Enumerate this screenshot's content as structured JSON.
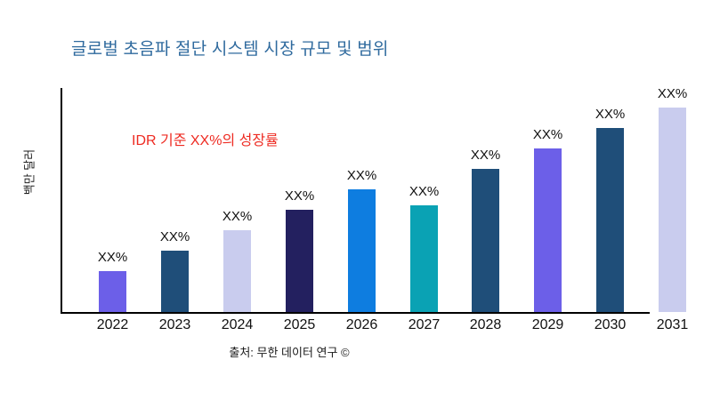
{
  "title": "글로벌 초음파 절단 시스템 시장 규모 및 범위",
  "annotation": "IDR 기준 XX%의 성장률",
  "source": "출처: 무한 데이터 연구 ©",
  "colors": {
    "title_text": "#2F6A9E",
    "annotation_text": "#EE2B22",
    "axis": "#000000",
    "label_text": "#111111"
  },
  "chart_data": {
    "type": "bar",
    "title": "글로벌 초음파 절단 시스템 시장 규모 및 범위",
    "xlabel": "",
    "ylabel": "백만 달러",
    "categories": [
      "2022",
      "2023",
      "2024",
      "2025",
      "2026",
      "2027",
      "2028",
      "2029",
      "2030",
      "2031"
    ],
    "values": [
      20,
      30,
      40,
      50,
      60,
      52,
      70,
      80,
      90,
      100
    ],
    "bar_labels": [
      "XX%",
      "XX%",
      "XX%",
      "XX%",
      "XX%",
      "XX%",
      "XX%",
      "XX%",
      "XX%",
      "XX%"
    ],
    "bar_colors": [
      "#6C5FE8",
      "#1F4E79",
      "#C9CCEE",
      "#23205F",
      "#0E7DE0",
      "#0AA2B4",
      "#1F4E79",
      "#6C5FE8",
      "#1F4E79",
      "#C9CCEE"
    ],
    "ylim": [
      0,
      105
    ],
    "grid": false,
    "legend": false,
    "y_ticks_visible": false,
    "annotation": "IDR 기준 XX%의 성장률",
    "source": "출처: 무한 데이터 연구 ©"
  }
}
